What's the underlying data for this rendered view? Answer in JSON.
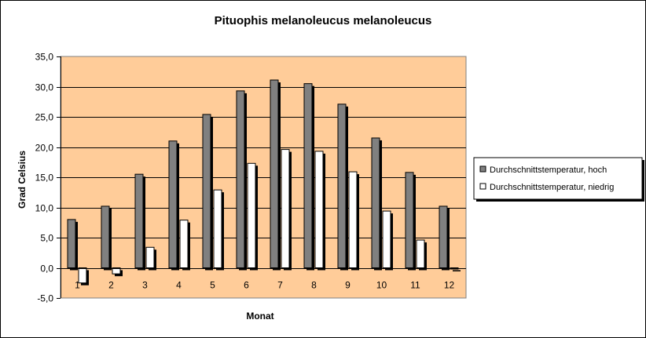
{
  "chart_data": {
    "type": "bar",
    "title": "Pituophis melanoleucus melanoleucus",
    "xlabel": "Monat",
    "ylabel": "Grad Celsius",
    "categories": [
      "1",
      "2",
      "3",
      "4",
      "5",
      "6",
      "7",
      "8",
      "9",
      "10",
      "11",
      "12"
    ],
    "ylim": [
      -5,
      35
    ],
    "yticks": [
      "-5,0",
      "0,0",
      "5,0",
      "10,0",
      "15,0",
      "20,0",
      "25,0",
      "30,0",
      "35,0"
    ],
    "grid": true,
    "legend_position": "right",
    "plot_background": "#FFCC99",
    "series": [
      {
        "name": "Durchschnittstemperatur, hoch",
        "color": "#808080",
        "values": [
          8.0,
          10.2,
          15.5,
          21.0,
          25.4,
          29.3,
          31.1,
          30.5,
          27.1,
          21.5,
          15.8,
          10.2
        ]
      },
      {
        "name": "Durchschnittstemperatur, niedrig",
        "color": "#FFFFFF",
        "values": [
          -2.5,
          -1.0,
          3.4,
          7.9,
          12.9,
          17.3,
          19.6,
          19.3,
          15.9,
          9.4,
          4.6,
          -0.2
        ]
      }
    ]
  }
}
